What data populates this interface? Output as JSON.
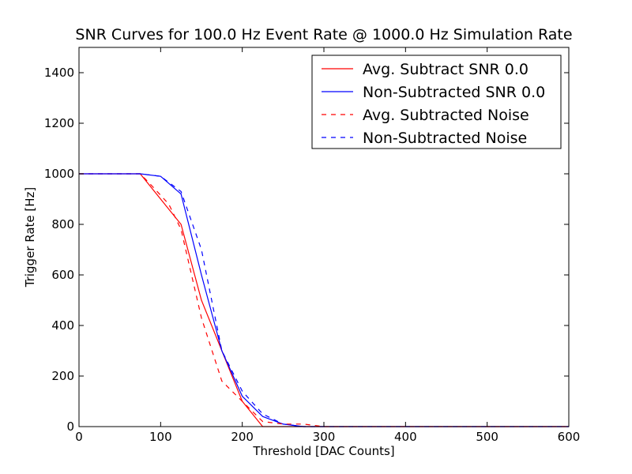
{
  "chart_data": {
    "type": "line",
    "title": "SNR Curves for 100.0 Hz Event Rate @ 1000.0 Hz Simulation Rate",
    "xlabel": "Threshold [DAC Counts]",
    "ylabel": "Trigger Rate [Hz]",
    "xlim": [
      0,
      600
    ],
    "ylim": [
      0,
      1500
    ],
    "xticks": [
      0,
      100,
      200,
      300,
      400,
      500,
      600
    ],
    "yticks": [
      0,
      200,
      400,
      600,
      800,
      1000,
      1200,
      1400
    ],
    "grid": false,
    "legend_position": "top-right",
    "series": [
      {
        "name": "Avg. Subtract SNR 0.0",
        "color": "#ff0000",
        "dash": "solid",
        "x": [
          0,
          25,
          50,
          75,
          100,
          125,
          150,
          175,
          200,
          225,
          250,
          300,
          400,
          500,
          600
        ],
        "y": [
          1000,
          1000,
          1000,
          1000,
          900,
          800,
          500,
          300,
          100,
          0,
          0,
          0,
          0,
          0,
          0
        ]
      },
      {
        "name": "Non-Subtracted SNR 0.0",
        "color": "#0000ff",
        "dash": "solid",
        "x": [
          0,
          25,
          50,
          75,
          100,
          125,
          150,
          175,
          200,
          225,
          250,
          275,
          300,
          400,
          500,
          600
        ],
        "y": [
          1000,
          1000,
          1000,
          1000,
          990,
          920,
          600,
          300,
          120,
          40,
          10,
          0,
          0,
          0,
          0,
          0
        ]
      },
      {
        "name": "Avg. Subtracted Noise",
        "color": "#ff0000",
        "dash": "dashed",
        "x": [
          0,
          25,
          50,
          75,
          90,
          110,
          125,
          150,
          175,
          200,
          225,
          250,
          275,
          300,
          400,
          500,
          600
        ],
        "y": [
          1000,
          1000,
          1000,
          1000,
          950,
          880,
          780,
          430,
          180,
          100,
          20,
          10,
          10,
          0,
          0,
          0,
          0
        ]
      },
      {
        "name": "Non-Subtracted Noise",
        "color": "#0000ff",
        "dash": "dashed",
        "x": [
          0,
          25,
          50,
          75,
          100,
          125,
          150,
          175,
          200,
          225,
          250,
          275,
          300,
          400,
          500,
          600
        ],
        "y": [
          1000,
          1000,
          1000,
          1000,
          990,
          930,
          700,
          300,
          140,
          50,
          10,
          0,
          0,
          0,
          0,
          0
        ]
      }
    ]
  }
}
